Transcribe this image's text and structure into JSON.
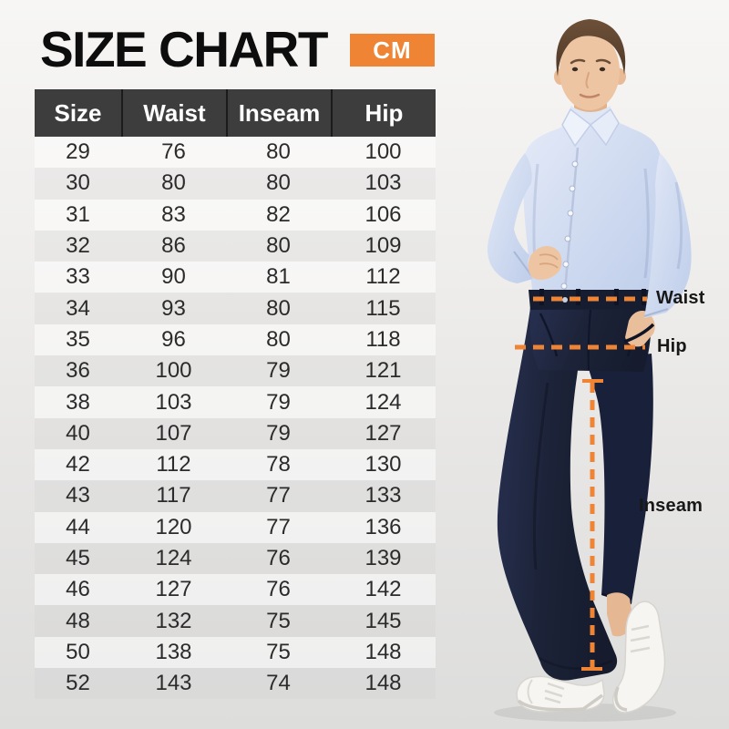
{
  "title": "SIZE CHART",
  "unit_badge": "CM",
  "colors": {
    "accent_orange": "#EE8434",
    "header_bg": "#3D3D3D",
    "header_text": "#FFFFFF",
    "pants_navy": "#1C2338",
    "shirt_blue": "#CDD8EF",
    "background_top": "#F7F6F4",
    "background_bottom": "#DDDDDC"
  },
  "annotations": {
    "waist_label": "Waist",
    "hip_label": "Hip",
    "inseam_label": "Inseam"
  },
  "chart_data": {
    "type": "table",
    "title": "SIZE CHART",
    "unit": "CM",
    "columns": [
      "Size",
      "Waist",
      "Inseam",
      "Hip"
    ],
    "rows": [
      [
        29,
        76,
        80,
        100
      ],
      [
        30,
        80,
        80,
        103
      ],
      [
        31,
        83,
        82,
        106
      ],
      [
        32,
        86,
        80,
        109
      ],
      [
        33,
        90,
        81,
        112
      ],
      [
        34,
        93,
        80,
        115
      ],
      [
        35,
        96,
        80,
        118
      ],
      [
        36,
        100,
        79,
        121
      ],
      [
        38,
        103,
        79,
        124
      ],
      [
        40,
        107,
        79,
        127
      ],
      [
        42,
        112,
        78,
        130
      ],
      [
        43,
        117,
        77,
        133
      ],
      [
        44,
        120,
        77,
        136
      ],
      [
        45,
        124,
        76,
        139
      ],
      [
        46,
        127,
        76,
        142
      ],
      [
        48,
        132,
        75,
        145
      ],
      [
        50,
        138,
        75,
        148
      ],
      [
        52,
        143,
        74,
        148
      ]
    ]
  }
}
